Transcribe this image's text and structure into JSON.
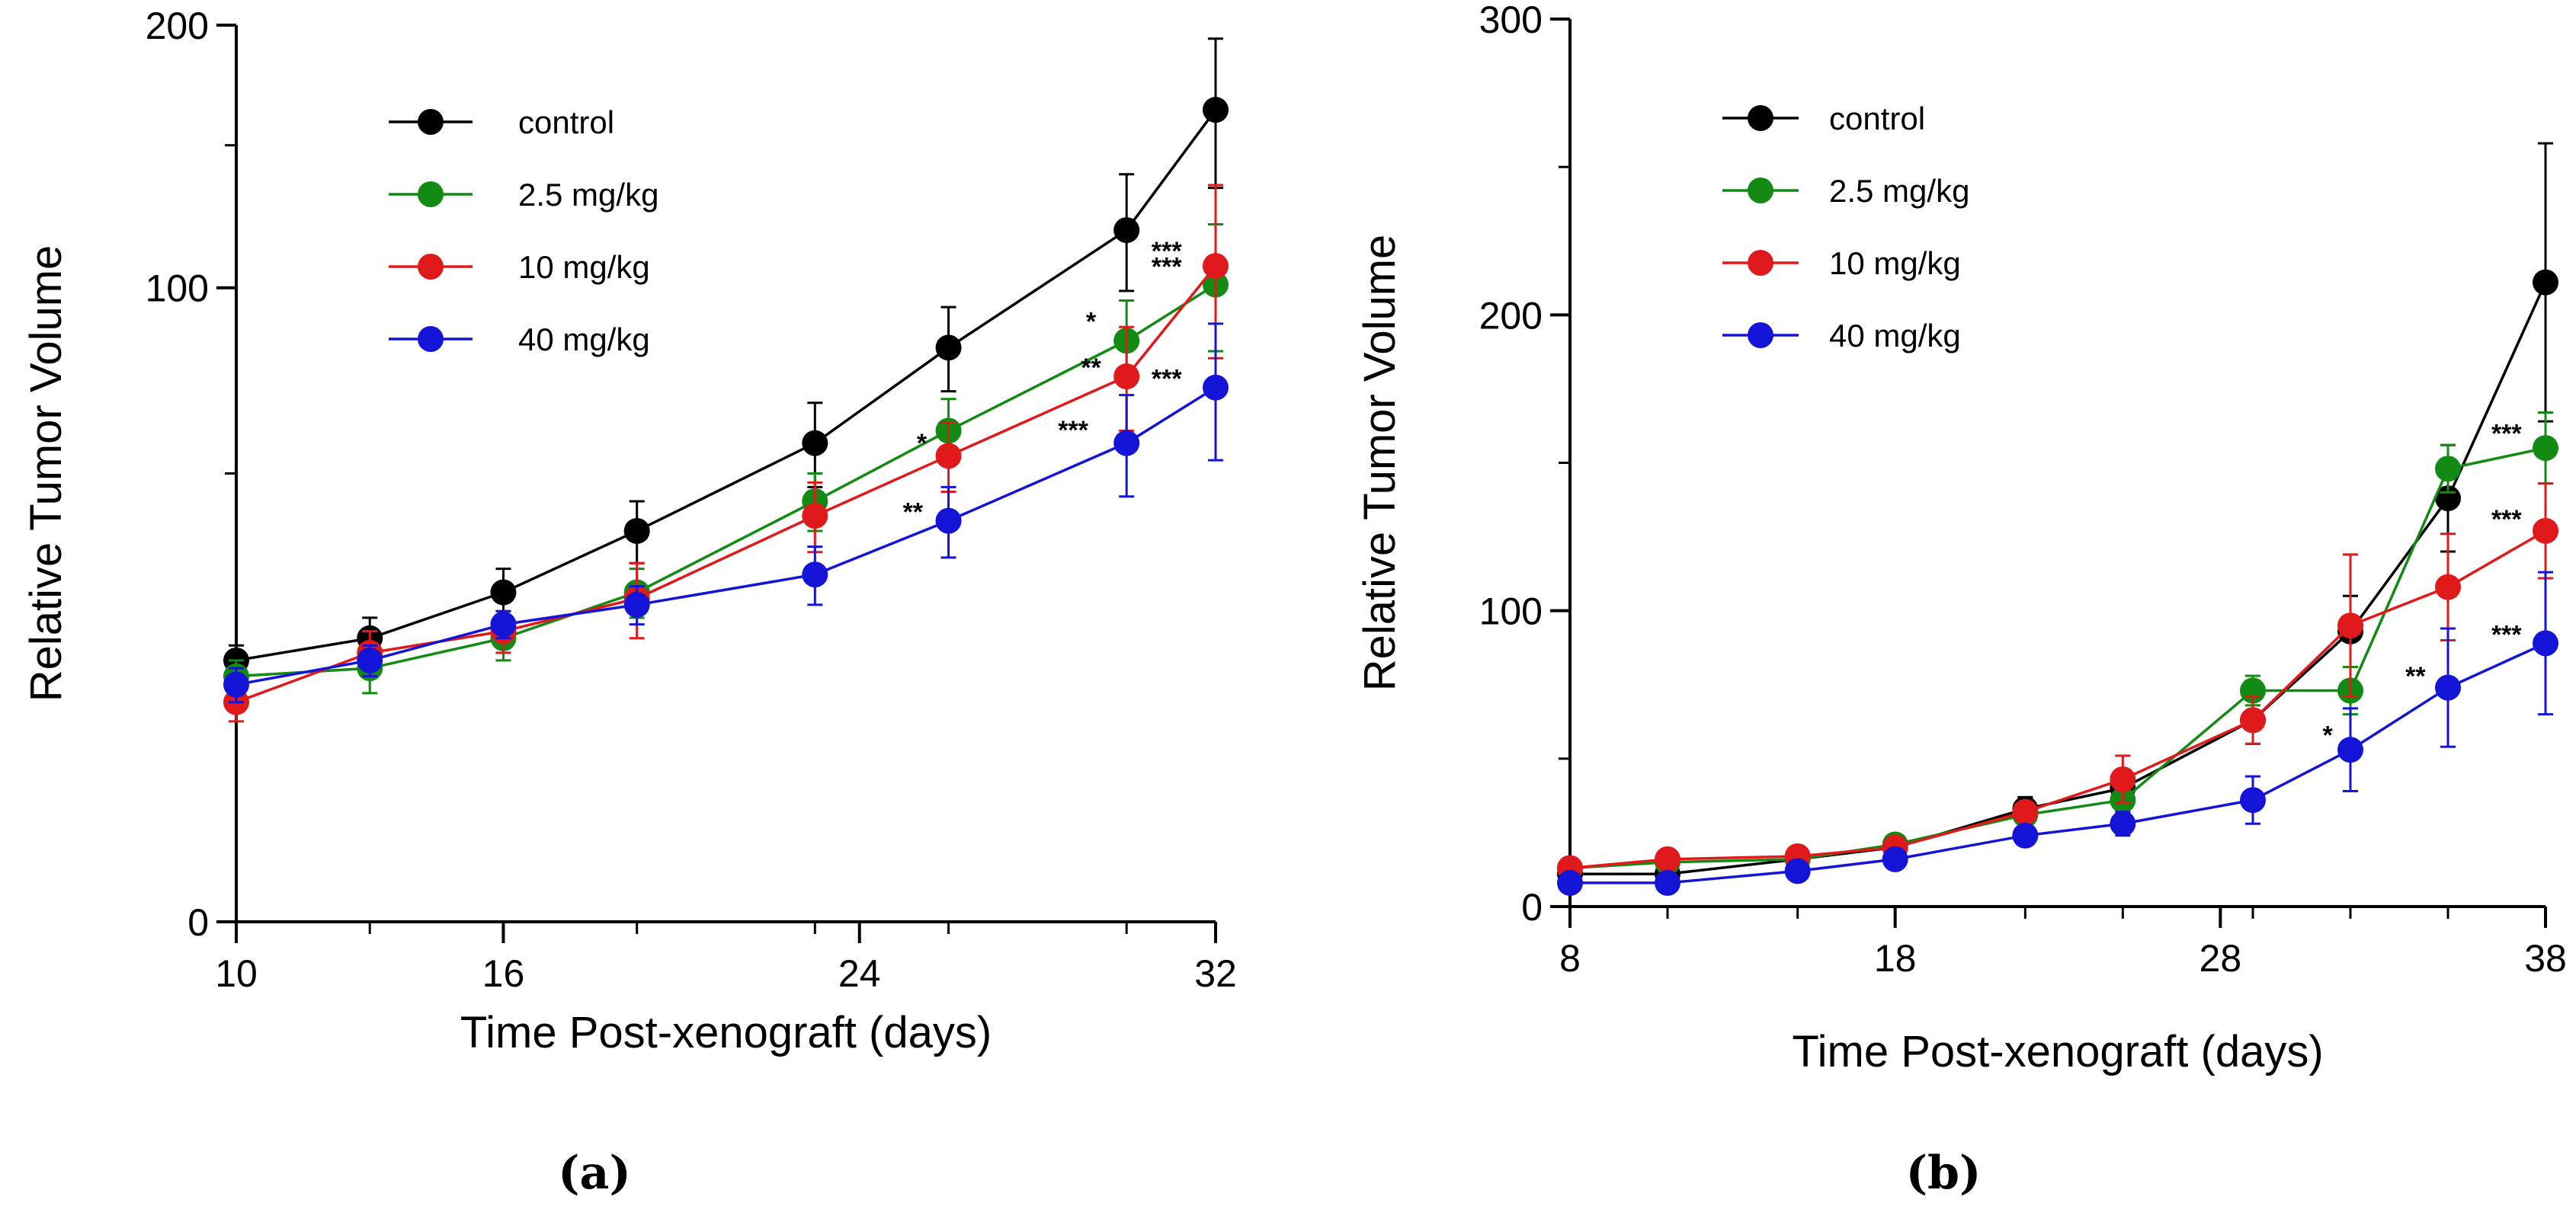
{
  "colors": {
    "control": "#000000",
    "2.5": "#138a13",
    "10": "#e0191b",
    "40": "#1414d6"
  },
  "chart_data": [
    {
      "type": "line",
      "panel_label": "(a)",
      "xlabel": "Time Post-xenograft (days)",
      "ylabel": "Relative Tumor Volume",
      "yscale": "sqrt",
      "xlim": [
        10,
        32
      ],
      "ylim": [
        0,
        200
      ],
      "xticks": [
        10,
        16,
        24,
        32
      ],
      "yticks": [
        0,
        100,
        200
      ],
      "x": [
        10,
        13,
        16,
        19,
        23,
        26,
        30,
        32
      ],
      "series": [
        {
          "name": "control",
          "color_key": "control",
          "values": [
            17,
            20,
            27,
            38,
            57,
            82,
            119,
            164
          ],
          "errors": [
            2,
            3,
            4,
            6,
            10,
            12,
            20,
            30
          ]
        },
        {
          "name": "2.5 mg/kg",
          "color_key": "2.5",
          "values": [
            15,
            16,
            20,
            27,
            44,
            60,
            84,
            101
          ],
          "errors": [
            2,
            3,
            3,
            4,
            6,
            8,
            12,
            20
          ]
        },
        {
          "name": "10 mg/kg",
          "color_key": "10",
          "values": [
            12,
            18,
            21,
            26,
            41,
            54,
            74,
            107
          ],
          "errors": [
            2,
            3,
            3,
            6,
            7,
            8,
            14,
            28
          ]
        },
        {
          "name": "40 mg/kg",
          "color_key": "40",
          "values": [
            14,
            17,
            22,
            25,
            30,
            40,
            57,
            71
          ],
          "errors": [
            2,
            2,
            2,
            3,
            5,
            7,
            12,
            18
          ]
        }
      ],
      "annotations": [
        {
          "text": "*",
          "x": 29.2,
          "y": 87
        },
        {
          "text": "**",
          "x": 29.2,
          "y": 74
        },
        {
          "text": "***",
          "x": 28.8,
          "y": 58
        },
        {
          "text": "*",
          "x": 25.4,
          "y": 55
        },
        {
          "text": "**",
          "x": 25.2,
          "y": 40
        },
        {
          "text": "***",
          "x": 30.9,
          "y": 109
        },
        {
          "text": "***",
          "x": 30.9,
          "y": 104
        },
        {
          "text": "***",
          "x": 30.9,
          "y": 71
        }
      ]
    },
    {
      "type": "line",
      "panel_label": "(b)",
      "xlabel": "Time Post-xenograft (days)",
      "ylabel": "Relative Tumor Volume",
      "yscale": "linear",
      "xlim": [
        8,
        38
      ],
      "ylim": [
        0,
        300
      ],
      "xticks": [
        8,
        18,
        28,
        38
      ],
      "yticks": [
        0,
        100,
        200,
        300
      ],
      "x": [
        8,
        11,
        15,
        18,
        22,
        25,
        29,
        32,
        35,
        38
      ],
      "series": [
        {
          "name": "control",
          "color_key": "control",
          "values": [
            11,
            11,
            16,
            20,
            33,
            40,
            63,
            93,
            138,
            211
          ],
          "errors": [
            2,
            2,
            2,
            3,
            4,
            5,
            8,
            12,
            18,
            47
          ]
        },
        {
          "name": "2.5 mg/kg",
          "color_key": "2.5",
          "values": [
            13,
            15,
            16,
            21,
            31,
            36,
            73,
            73,
            148,
            155
          ],
          "errors": [
            2,
            2,
            2,
            3,
            3,
            4,
            5,
            8,
            8,
            12
          ]
        },
        {
          "name": "10 mg/kg",
          "color_key": "10",
          "values": [
            13,
            16,
            17,
            20,
            32,
            43,
            63,
            95,
            108,
            127
          ],
          "errors": [
            2,
            2,
            2,
            3,
            3,
            8,
            8,
            24,
            18,
            16
          ]
        },
        {
          "name": "40 mg/kg",
          "color_key": "40",
          "values": [
            8,
            8,
            12,
            16,
            24,
            28,
            36,
            53,
            74,
            89
          ],
          "errors": [
            1,
            1,
            2,
            2,
            2,
            4,
            8,
            14,
            20,
            24
          ]
        }
      ],
      "annotations": [
        {
          "text": "***",
          "x": 36.8,
          "y": 157
        },
        {
          "text": "***",
          "x": 36.8,
          "y": 128
        },
        {
          "text": "***",
          "x": 36.8,
          "y": 89
        },
        {
          "text": "**",
          "x": 34.0,
          "y": 75
        },
        {
          "text": "*",
          "x": 31.3,
          "y": 55
        }
      ]
    }
  ]
}
